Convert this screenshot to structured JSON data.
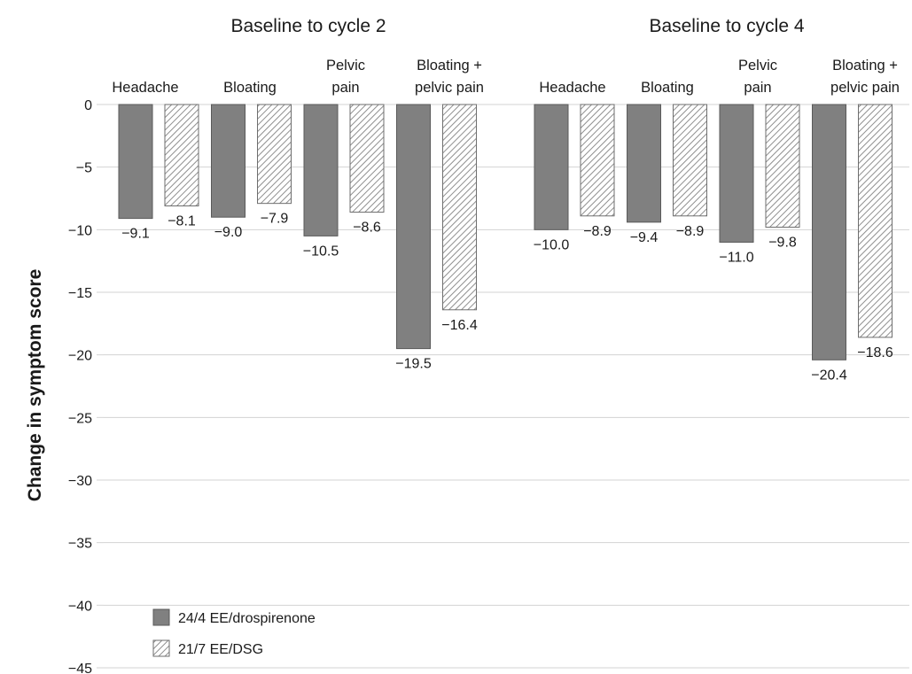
{
  "chart_data": {
    "type": "bar",
    "ylabel": "Change in symptom score",
    "ylim": [
      -45,
      0
    ],
    "yticks": [
      "0",
      "−5",
      "−10",
      "−15",
      "−20",
      "−25",
      "−30",
      "−35",
      "−40",
      "−45"
    ],
    "grid": true,
    "legend": {
      "placement": "bottom-left",
      "entries": [
        "24/4 EE/drospirenone",
        "21/7 EE/DSG"
      ]
    },
    "colors": {
      "solid": "#808080",
      "hatch": "#a6a6a6"
    },
    "panels": [
      {
        "title": "Baseline to cycle 2",
        "categories": [
          [
            "Headache"
          ],
          [
            "Bloating"
          ],
          [
            "Pelvic",
            "pain"
          ],
          [
            "Bloating +",
            "pelvic pain"
          ]
        ],
        "series": [
          {
            "name": "24/4 EE/drospirenone",
            "values": [
              -9.1,
              -9.0,
              -10.5,
              -19.5
            ],
            "labels": [
              "−9.1",
              "−9.0",
              "−10.5",
              "−19.5"
            ]
          },
          {
            "name": "21/7 EE/DSG",
            "values": [
              -8.1,
              -7.9,
              -8.6,
              -16.4
            ],
            "labels": [
              "−8.1",
              "−7.9",
              "−8.6",
              "−16.4"
            ]
          }
        ]
      },
      {
        "title": "Baseline to cycle 4",
        "categories": [
          [
            "Headache"
          ],
          [
            "Bloating"
          ],
          [
            "Pelvic",
            "pain"
          ],
          [
            "Bloating +",
            "pelvic pain"
          ]
        ],
        "series": [
          {
            "name": "24/4 EE/drospirenone",
            "values": [
              -10.0,
              -9.4,
              -11.0,
              -20.4
            ],
            "labels": [
              "−10.0",
              "−9.4",
              "−11.0",
              "−20.4"
            ]
          },
          {
            "name": "21/7 EE/DSG",
            "values": [
              -8.9,
              -8.9,
              -9.8,
              -18.6
            ],
            "labels": [
              "−8.9",
              "−8.9",
              "−9.8",
              "−18.6"
            ]
          }
        ]
      }
    ]
  }
}
